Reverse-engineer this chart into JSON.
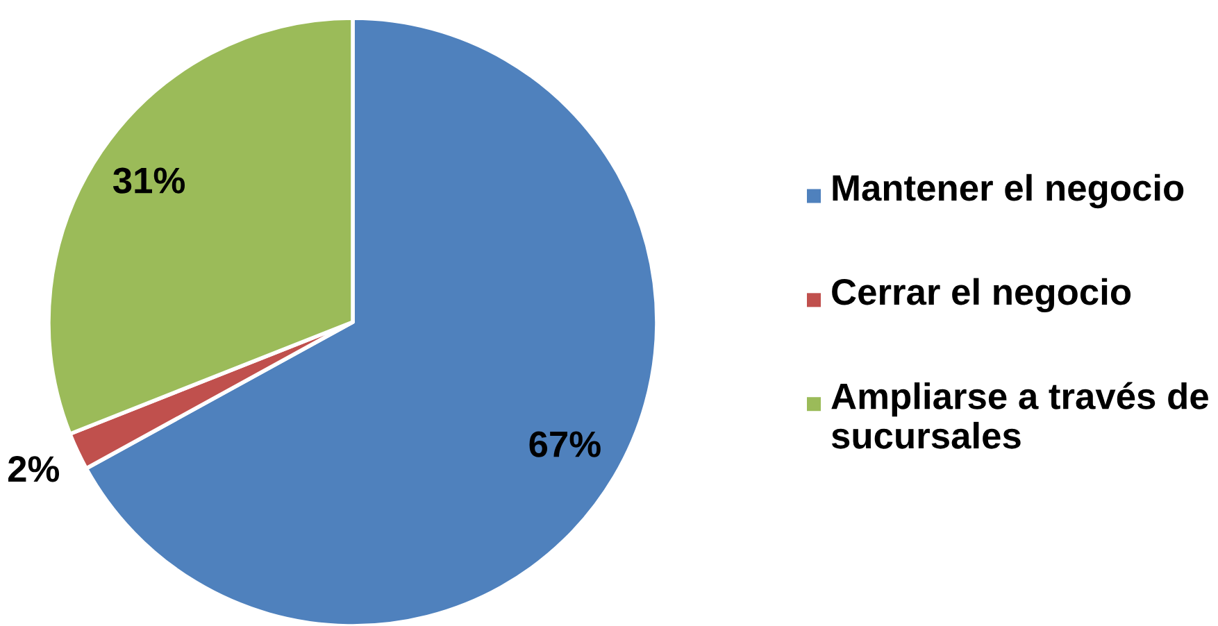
{
  "chart_data": {
    "type": "pie",
    "categories": [
      "Mantener el negocio",
      "Cerrar el negocio",
      "Ampliarse a través de sucursales"
    ],
    "values": [
      67,
      2,
      31
    ],
    "colors": [
      "#4f81bd",
      "#c0504d",
      "#9bbb59"
    ],
    "value_labels": [
      "67%",
      "2%",
      "31%"
    ],
    "legend": "right"
  }
}
